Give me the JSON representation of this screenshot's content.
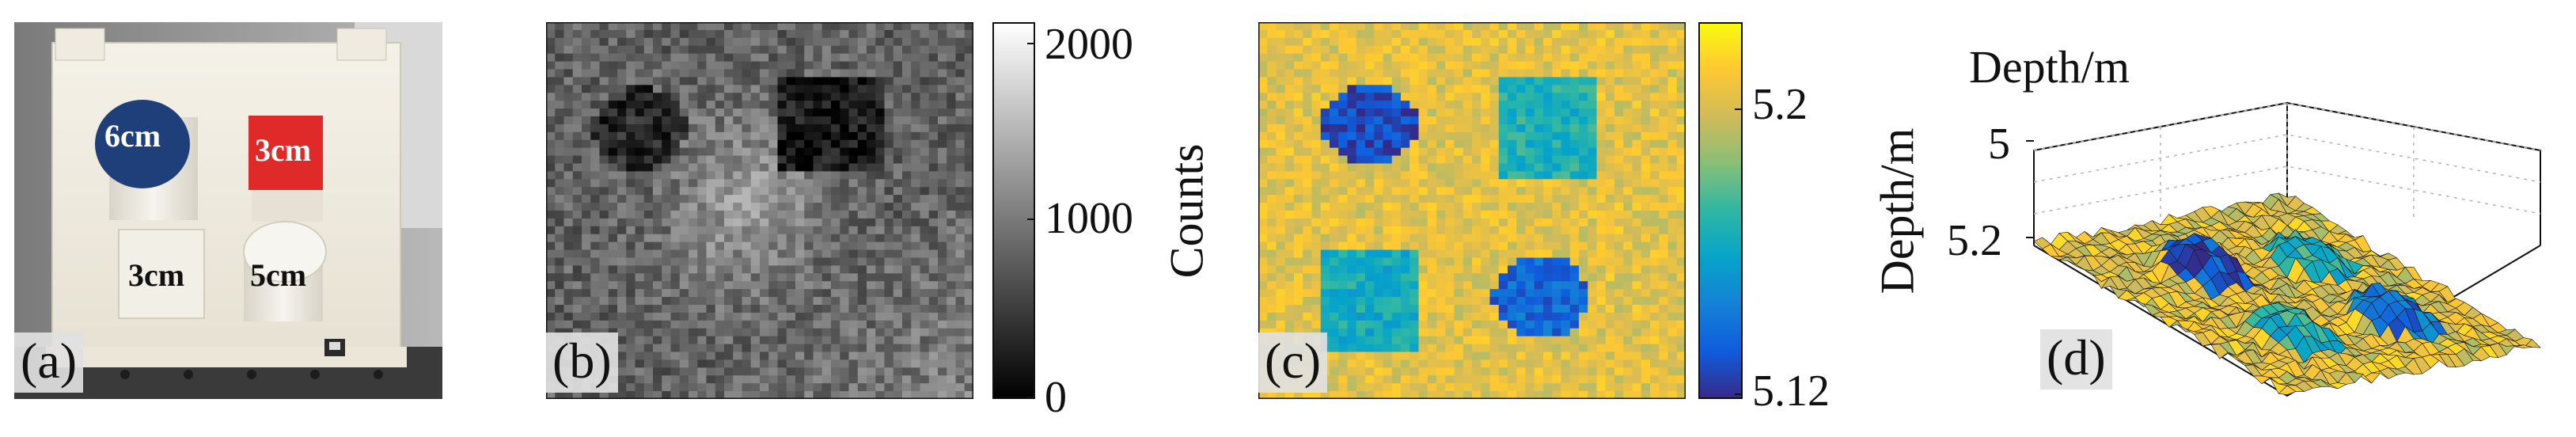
{
  "figure": {
    "panels": [
      {
        "id": "a",
        "label": "(a)",
        "kind": "photograph",
        "objects": [
          {
            "label": "6cm",
            "color": "#1e3f7a"
          },
          {
            "label": "3cm",
            "color": "#e02a2a"
          },
          {
            "label": "3cm",
            "color": "#f1efe6"
          },
          {
            "label": "5cm",
            "color": "#f4f2ea"
          }
        ]
      },
      {
        "id": "b",
        "label": "(b)",
        "kind": "intensity-image",
        "colormap": "gray",
        "colorbar": {
          "label": "Counts",
          "ticks": [
            "2000",
            "1000",
            "0"
          ],
          "range": [
            0,
            2100
          ]
        }
      },
      {
        "id": "c",
        "label": "(c)",
        "kind": "depth-image",
        "colormap": "parula",
        "colorbar": {
          "label": "Depth/m",
          "ticks": [
            "5.2",
            "5.12"
          ],
          "range": [
            5.11,
            5.23
          ]
        }
      },
      {
        "id": "d",
        "label": "(d)",
        "kind": "3d-surface",
        "zlabel": "Depth/m",
        "zticks": [
          "5",
          "5.2"
        ]
      }
    ]
  },
  "colors": {
    "parula": [
      "#352a87",
      "#0f5cdd",
      "#1481d6",
      "#06a4ca",
      "#2eb7a4",
      "#87bf77",
      "#d1bb59",
      "#fec832",
      "#f9fb0e"
    ]
  }
}
